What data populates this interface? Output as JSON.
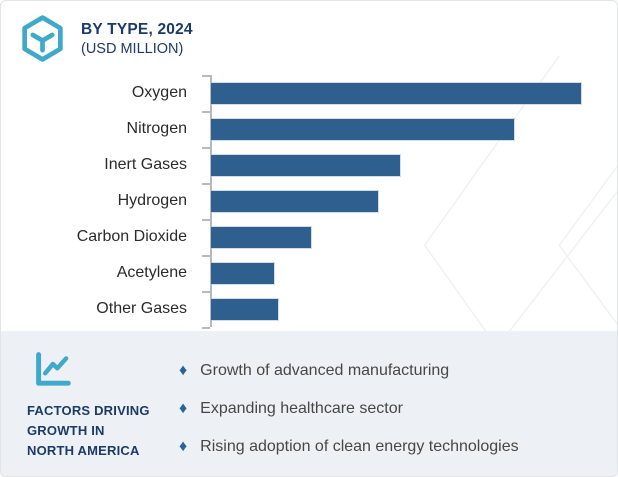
{
  "header": {
    "icon": "cube-hexagon-icon",
    "title": "BY TYPE, 2024",
    "subtitle": "(USD MILLION)"
  },
  "chart_data": {
    "type": "bar",
    "orientation": "horizontal",
    "title": "BY TYPE, 2024",
    "subtitle": "(USD MILLION)",
    "categories": [
      "Oxygen",
      "Nitrogen",
      "Inert Gases",
      "Hydrogen",
      "Carbon Dioxide",
      "Acetylene",
      "Other Gases"
    ],
    "values": [
      100,
      82,
      51,
      45,
      27,
      17,
      18
    ],
    "value_units": "relative length, % of largest bar (numeric axis not labeled in source)",
    "xlabel": "",
    "ylabel": "",
    "xlim": [
      0,
      108
    ],
    "grid": false,
    "legend": false,
    "bar_color": "#2e5f8f"
  },
  "factors": {
    "icon": "trend-line-chart-icon",
    "label_lines": [
      "FACTORS DRIVING",
      "GROWTH IN",
      "NORTH AMERICA"
    ],
    "bullet_glyph": "♦",
    "items": [
      "Growth of advanced manufacturing",
      "Expanding healthcare sector",
      "Rising adoption of clean energy technologies"
    ]
  },
  "colors": {
    "accent_teal": "#3fa9c9",
    "bar_blue": "#2e5f8f",
    "navy": "#1b3a66",
    "bullet_blue": "#2a6399",
    "panel_bg": "#edf0f5",
    "axis_gray": "#b5bac0",
    "text_dark": "#2b2b2b",
    "text_gray": "#474747",
    "watermark": "#f1f1f1"
  }
}
